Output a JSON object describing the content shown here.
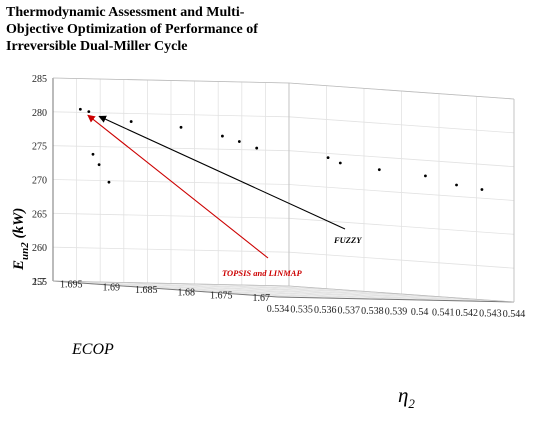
{
  "title": "Thermodynamic Assessment and Multi-Objective Optimization of Performance of Irreversible Dual-Miller Cycle",
  "chart_data": {
    "type": "scatter",
    "title": "Thermodynamic Assessment and Multi-Objective Optimization of Performance of Irreversible Dual-Miller Cycle",
    "xlabel": "η₂",
    "ylabel": "ECOP",
    "zlabel": "E_un2 (kW)",
    "x_ticks": [
      "0.534",
      "0.535",
      "0.536",
      "0.537",
      "0.538",
      "0.539",
      "0.54",
      "0.541",
      "0.542",
      "0.543",
      "0.544"
    ],
    "y_ticks": [
      "1.67",
      "1.675",
      "1.68",
      "1.685",
      "1.69",
      "1.695",
      "1.7"
    ],
    "z_ticks": [
      "255",
      "260",
      "265",
      "270",
      "275",
      "280",
      "285"
    ],
    "xlim": [
      0.534,
      0.544
    ],
    "ylim": [
      1.67,
      1.7
    ],
    "zlim": [
      255,
      285
    ],
    "grid": true,
    "points": [
      {
        "x": 0.535,
        "y": 1.6995,
        "z": 280.5
      },
      {
        "x": 0.5352,
        "y": 1.699,
        "z": 280.2
      },
      {
        "x": 0.5349,
        "y": 1.6975,
        "z": 274.0
      },
      {
        "x": 0.535,
        "y": 1.697,
        "z": 272.5
      },
      {
        "x": 0.5351,
        "y": 1.696,
        "z": 270.0
      },
      {
        "x": 0.5362,
        "y": 1.6965,
        "z": 279.0
      },
      {
        "x": 0.5372,
        "y": 1.693,
        "z": 278.5
      },
      {
        "x": 0.538,
        "y": 1.69,
        "z": 277.5
      },
      {
        "x": 0.5384,
        "y": 1.689,
        "z": 276.8
      },
      {
        "x": 0.5385,
        "y": 1.687,
        "z": 276.0
      },
      {
        "x": 0.5393,
        "y": 1.68,
        "z": 275.2
      },
      {
        "x": 0.5395,
        "y": 1.679,
        "z": 274.5
      },
      {
        "x": 0.5402,
        "y": 1.676,
        "z": 273.8
      },
      {
        "x": 0.5412,
        "y": 1.673,
        "z": 273.2
      },
      {
        "x": 0.5422,
        "y": 1.672,
        "z": 272.0
      },
      {
        "x": 0.5428,
        "y": 1.6705,
        "z": 271.5
      }
    ],
    "annotations": [
      {
        "text": "FUZZY",
        "color": "#000000",
        "target_index": 1
      },
      {
        "text": "TOPSIS and LINMAP",
        "color": "#cc0000",
        "target_index": 0
      }
    ]
  }
}
